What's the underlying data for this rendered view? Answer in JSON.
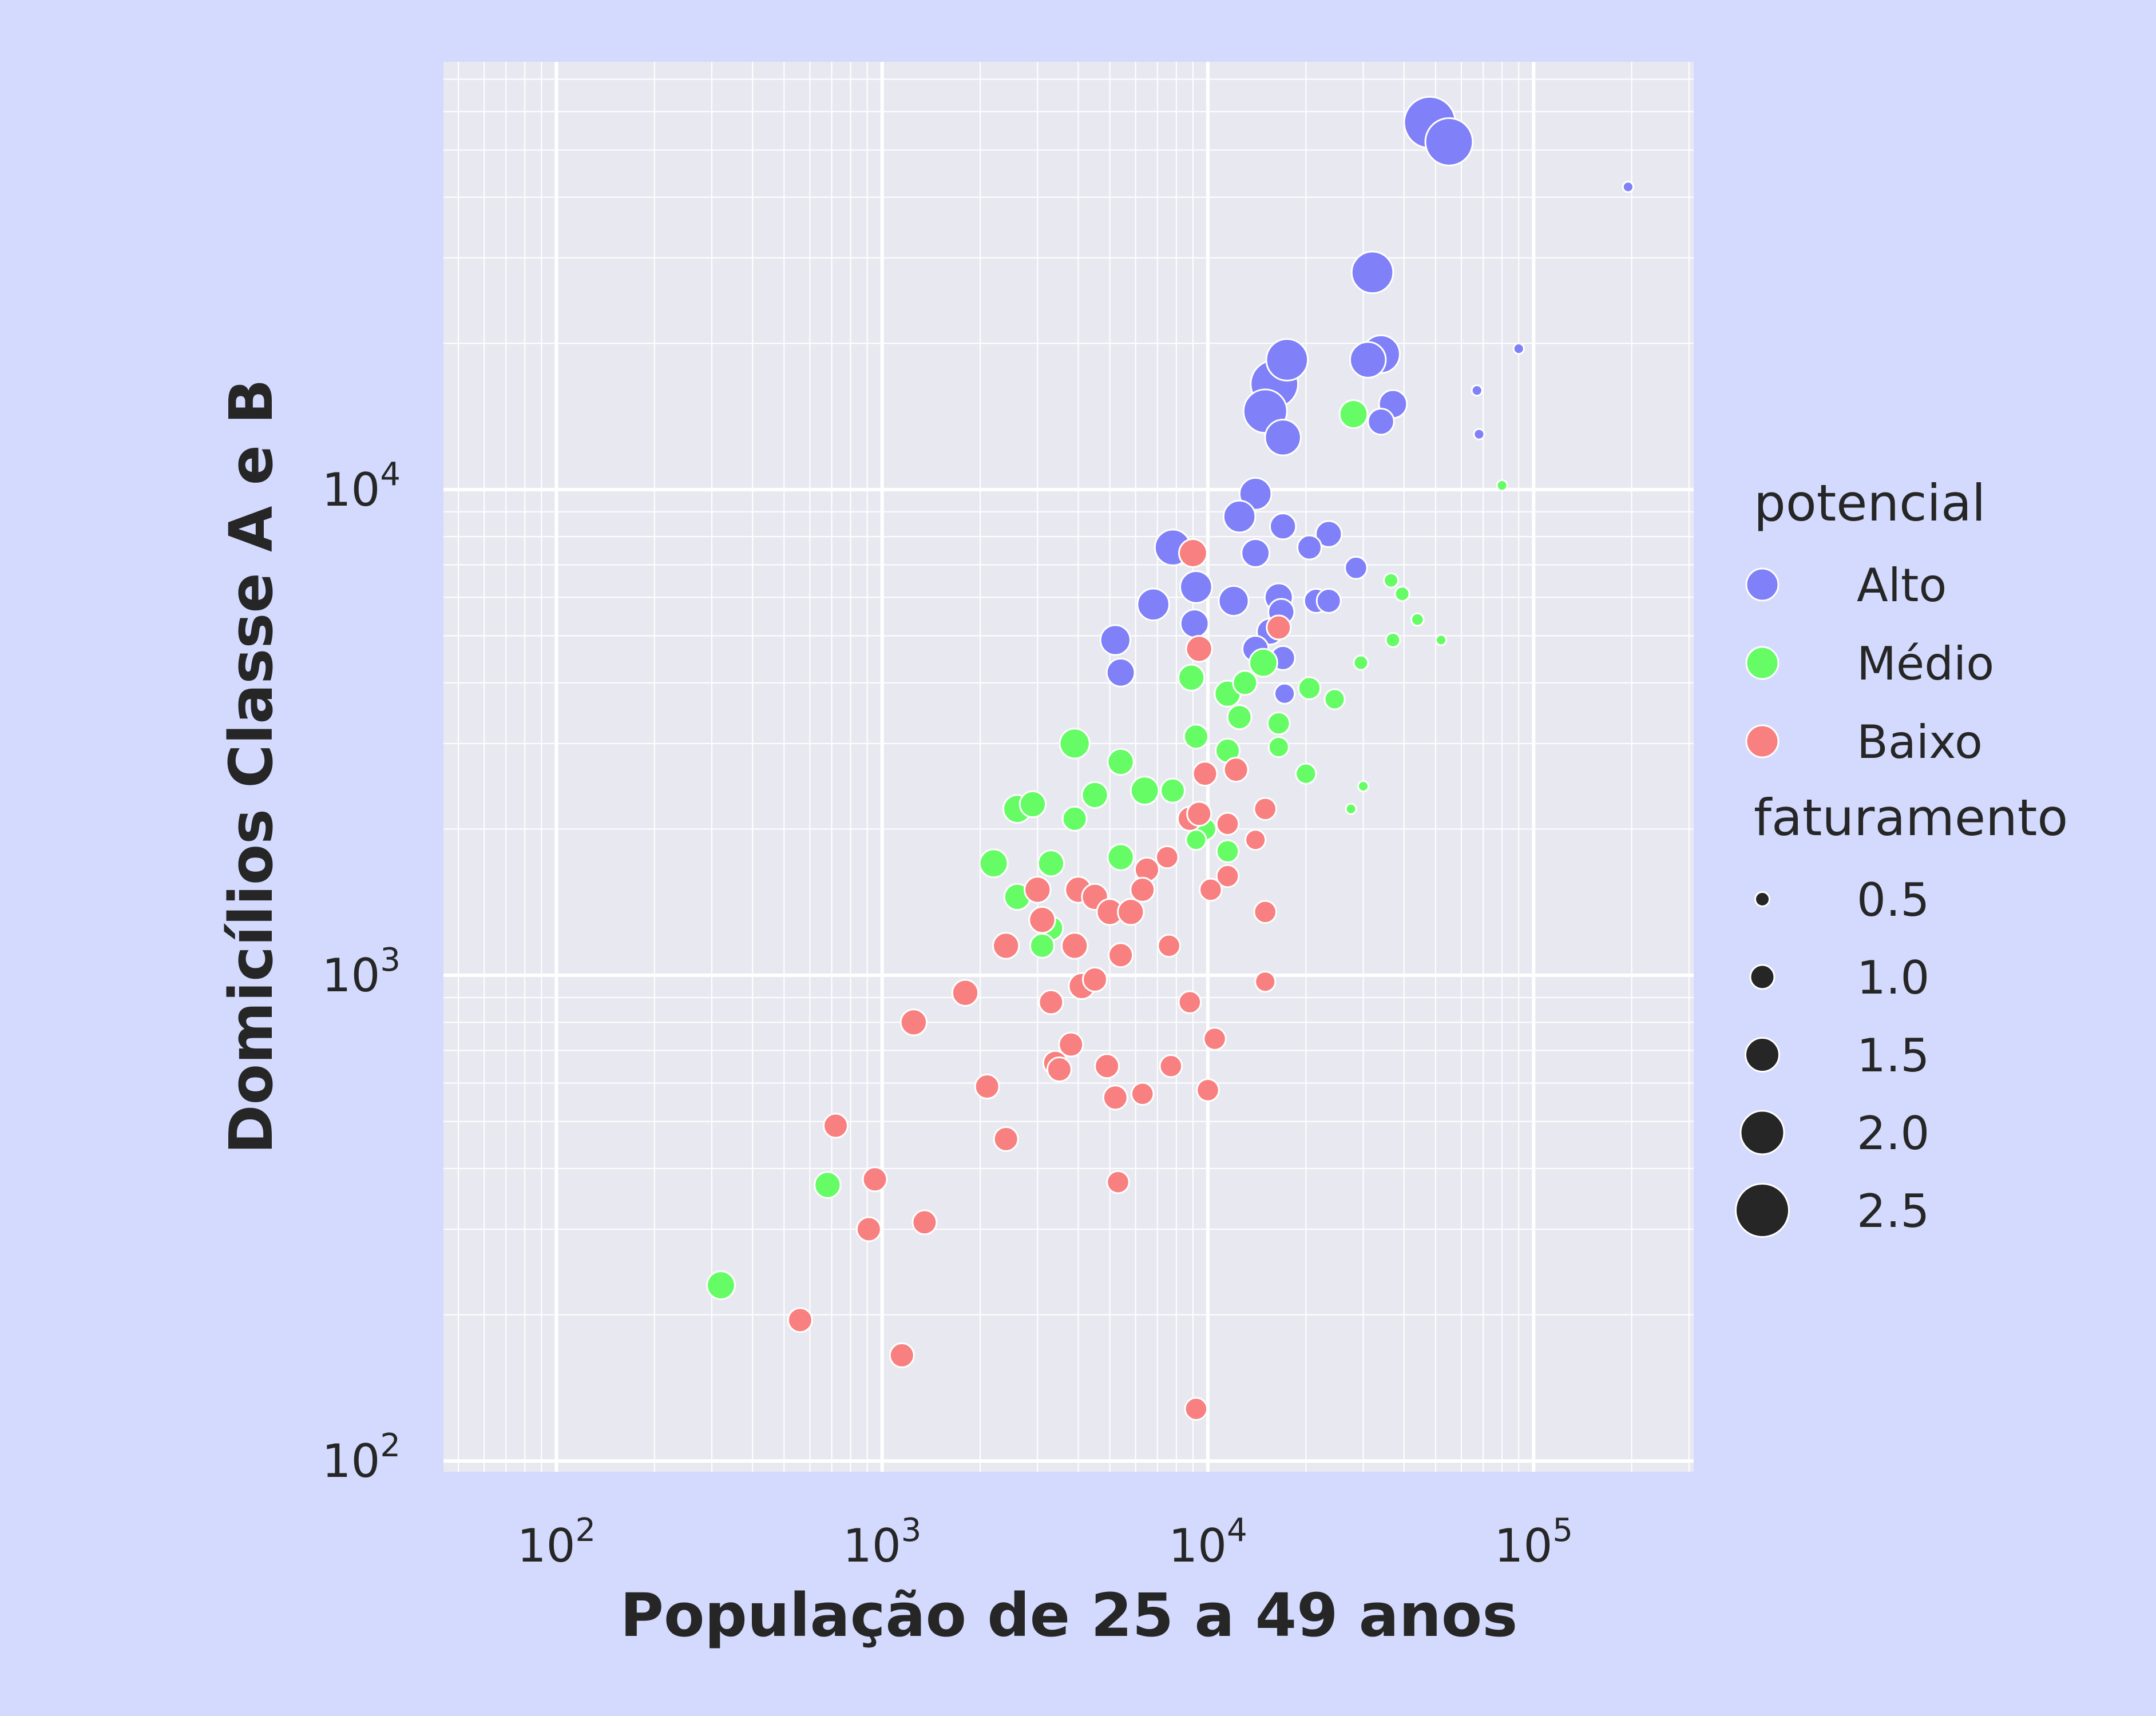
{
  "chart_data": {
    "type": "scatter",
    "xlabel": "População de 25 a 49 anos",
    "ylabel": "Domicílios Classe A e B",
    "x_scale": "log",
    "y_scale": "log",
    "xlim": [
      45,
      310000
    ],
    "ylim": [
      95,
      76000
    ],
    "x_ticks": [
      {
        "value": 100,
        "base": "10",
        "exp": "2"
      },
      {
        "value": 1000,
        "base": "10",
        "exp": "3"
      },
      {
        "value": 10000,
        "base": "10",
        "exp": "4"
      },
      {
        "value": 100000,
        "base": "10",
        "exp": "5"
      }
    ],
    "y_ticks": [
      {
        "value": 100,
        "base": "10",
        "exp": "2"
      },
      {
        "value": 1000,
        "base": "10",
        "exp": "3"
      },
      {
        "value": 10000,
        "base": "10",
        "exp": "4"
      }
    ],
    "grid": true,
    "legend_position": "right",
    "hue_title": "potencial",
    "size_title": "faturamento",
    "hue_entries": [
      {
        "label": "Alto",
        "color": "#8080f8"
      },
      {
        "label": "Médio",
        "color": "#66fc66"
      },
      {
        "label": "Baixo",
        "color": "#f88080"
      }
    ],
    "size_entries": [
      {
        "label": "0.5",
        "value": 0.5
      },
      {
        "label": "1.0",
        "value": 1.0
      },
      {
        "label": "1.5",
        "value": 1.5
      },
      {
        "label": "2.0",
        "value": 2.0
      },
      {
        "label": "2.5",
        "value": 2.5
      }
    ],
    "series": [
      {
        "label": "Alto",
        "color": "#8080f8",
        "points": [
          [
            48000,
            57000,
            2.4
          ],
          [
            55000,
            52000,
            2.2
          ],
          [
            195000,
            42000,
            0.3
          ],
          [
            32000,
            28000,
            1.9
          ],
          [
            34000,
            19000,
            1.7
          ],
          [
            31000,
            18500,
            1.6
          ],
          [
            90000,
            19500,
            0.3
          ],
          [
            67000,
            16000,
            0.3
          ],
          [
            17500,
            18500,
            1.9
          ],
          [
            16000,
            16500,
            2.2
          ],
          [
            15000,
            14500,
            2.0
          ],
          [
            37000,
            15000,
            1.2
          ],
          [
            34000,
            13800,
            1.1
          ],
          [
            68000,
            13000,
            0.3
          ],
          [
            17000,
            12800,
            1.6
          ],
          [
            14000,
            9800,
            1.4
          ],
          [
            12500,
            8800,
            1.4
          ],
          [
            17000,
            8400,
            1.1
          ],
          [
            23500,
            8100,
            1.1
          ],
          [
            20500,
            7600,
            1.0
          ],
          [
            28500,
            6900,
            0.9
          ],
          [
            14000,
            7400,
            1.2
          ],
          [
            7800,
            7600,
            1.6
          ],
          [
            9200,
            6300,
            1.4
          ],
          [
            6800,
            5800,
            1.4
          ],
          [
            12000,
            5900,
            1.3
          ],
          [
            16500,
            6000,
            1.2
          ],
          [
            21500,
            5900,
            1.0
          ],
          [
            23500,
            5900,
            1.0
          ],
          [
            16800,
            5600,
            1.1
          ],
          [
            9100,
            5300,
            1.2
          ],
          [
            5200,
            4900,
            1.3
          ],
          [
            15500,
            5100,
            1.1
          ],
          [
            14000,
            4700,
            1.1
          ],
          [
            17000,
            4500,
            1.0
          ],
          [
            5400,
            4200,
            1.2
          ],
          [
            17200,
            3800,
            0.8
          ]
        ]
      },
      {
        "label": "Médio",
        "color": "#66fc66",
        "points": [
          [
            28000,
            14300,
            1.2
          ],
          [
            80000,
            10200,
            0.3
          ],
          [
            36500,
            6500,
            0.5
          ],
          [
            39500,
            6100,
            0.5
          ],
          [
            44000,
            5400,
            0.4
          ],
          [
            52000,
            4900,
            0.3
          ],
          [
            37000,
            4900,
            0.5
          ],
          [
            29500,
            4400,
            0.5
          ],
          [
            14800,
            4400,
            1.2
          ],
          [
            13000,
            4000,
            1.0
          ],
          [
            8900,
            4100,
            1.1
          ],
          [
            20500,
            3900,
            0.9
          ],
          [
            11500,
            3800,
            1.1
          ],
          [
            24500,
            3700,
            0.8
          ],
          [
            12500,
            3400,
            1.0
          ],
          [
            16500,
            3300,
            0.9
          ],
          [
            3900,
            3000,
            1.3
          ],
          [
            9200,
            3100,
            1.0
          ],
          [
            16500,
            2950,
            0.8
          ],
          [
            11500,
            2900,
            1.0
          ],
          [
            5400,
            2750,
            1.1
          ],
          [
            20000,
            2600,
            0.8
          ],
          [
            30000,
            2450,
            0.3
          ],
          [
            6400,
            2400,
            1.2
          ],
          [
            7800,
            2400,
            1.0
          ],
          [
            4500,
            2350,
            1.1
          ],
          [
            2900,
            2250,
            1.1
          ],
          [
            2600,
            2200,
            1.2
          ],
          [
            27500,
            2200,
            0.3
          ],
          [
            3900,
            2100,
            1.0
          ],
          [
            9800,
            2000,
            0.9
          ],
          [
            9200,
            1900,
            0.8
          ],
          [
            2200,
            1700,
            1.2
          ],
          [
            3300,
            1700,
            1.1
          ],
          [
            5400,
            1750,
            1.1
          ],
          [
            11500,
            1800,
            0.9
          ],
          [
            2600,
            1450,
            1.1
          ],
          [
            3300,
            1250,
            1.0
          ],
          [
            3100,
            1150,
            1.0
          ],
          [
            680,
            370,
            1.1
          ],
          [
            320,
            230,
            1.2
          ]
        ]
      },
      {
        "label": "Baixo",
        "color": "#f88080",
        "points": [
          [
            9000,
            7400,
            1.2
          ],
          [
            9400,
            4700,
            1.1
          ],
          [
            16500,
            5200,
            1.0
          ],
          [
            9800,
            2600,
            1.0
          ],
          [
            12200,
            2650,
            1.0
          ],
          [
            15000,
            2200,
            0.9
          ],
          [
            8800,
            2100,
            1.0
          ],
          [
            9400,
            2150,
            1.0
          ],
          [
            11500,
            2050,
            0.9
          ],
          [
            14000,
            1900,
            0.8
          ],
          [
            7500,
            1750,
            0.9
          ],
          [
            6500,
            1650,
            1.0
          ],
          [
            11500,
            1600,
            0.9
          ],
          [
            3000,
            1500,
            1.1
          ],
          [
            4000,
            1500,
            1.1
          ],
          [
            4500,
            1450,
            1.1
          ],
          [
            6300,
            1500,
            1.0
          ],
          [
            10200,
            1500,
            0.9
          ],
          [
            15000,
            1350,
            0.9
          ],
          [
            5000,
            1350,
            1.1
          ],
          [
            5800,
            1350,
            1.1
          ],
          [
            3100,
            1300,
            1.1
          ],
          [
            2400,
            1150,
            1.1
          ],
          [
            3900,
            1150,
            1.1
          ],
          [
            5400,
            1100,
            1.0
          ],
          [
            7600,
            1150,
            0.9
          ],
          [
            1800,
            920,
            1.1
          ],
          [
            4500,
            980,
            1.0
          ],
          [
            4100,
            950,
            1.1
          ],
          [
            3300,
            880,
            1.0
          ],
          [
            8800,
            880,
            0.9
          ],
          [
            15000,
            970,
            0.8
          ],
          [
            1250,
            800,
            1.1
          ],
          [
            3800,
            720,
            1.0
          ],
          [
            10500,
            740,
            0.9
          ],
          [
            3400,
            660,
            1.0
          ],
          [
            3500,
            640,
            1.0
          ],
          [
            4900,
            650,
            1.0
          ],
          [
            7700,
            650,
            0.9
          ],
          [
            2100,
            590,
            1.0
          ],
          [
            5200,
            560,
            1.0
          ],
          [
            6300,
            570,
            0.9
          ],
          [
            10000,
            580,
            0.9
          ],
          [
            720,
            490,
            1.0
          ],
          [
            2400,
            460,
            1.0
          ],
          [
            950,
            380,
            1.0
          ],
          [
            5300,
            375,
            0.9
          ],
          [
            910,
            300,
            1.0
          ],
          [
            1350,
            310,
            1.0
          ],
          [
            560,
            195,
            1.0
          ],
          [
            1150,
            165,
            1.0
          ],
          [
            9200,
            128,
            0.9
          ]
        ]
      }
    ]
  }
}
